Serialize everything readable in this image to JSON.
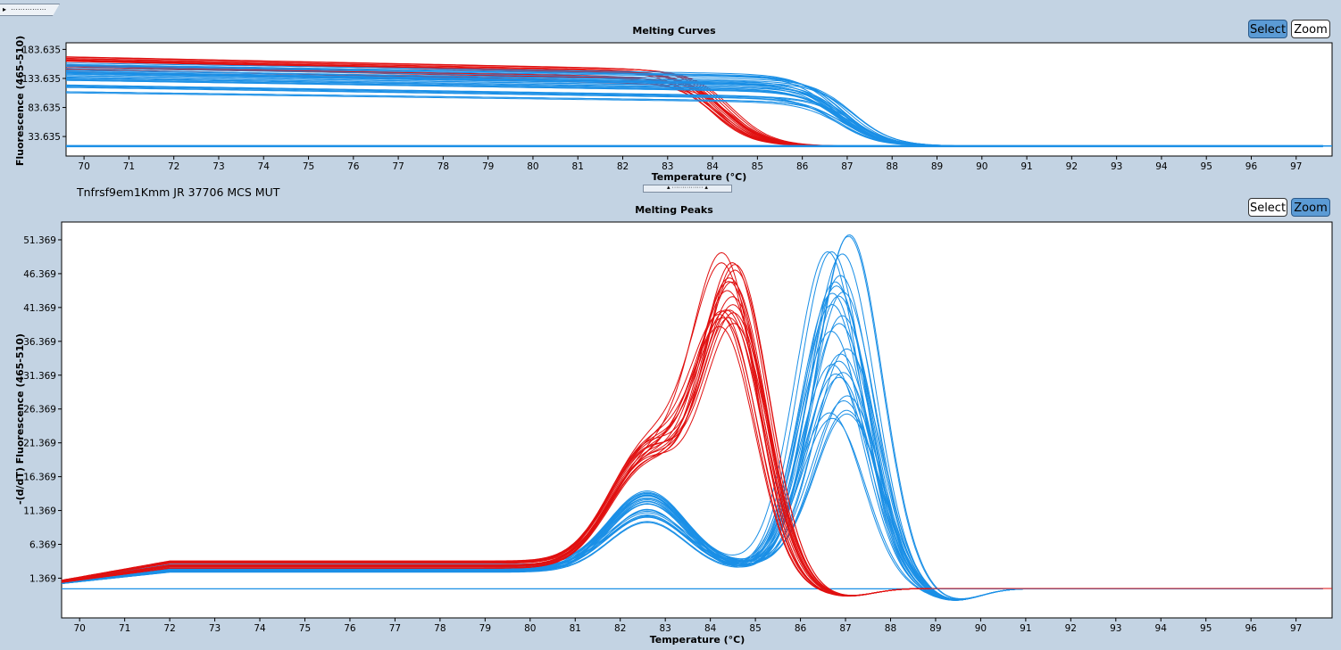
{
  "window": {
    "top_tab": {
      "arrow": "▸",
      "dots": "···············"
    },
    "sample_label": "Tnfrsf9em1Kmm JR 37706 MCS MUT",
    "splitter": {
      "text": "▴ ··············· ▴"
    }
  },
  "curves_panel": {
    "title": "Melting Curves",
    "select_label": "Select",
    "zoom_label": "Zoom",
    "active_mode": "Select"
  },
  "peaks_panel": {
    "title": "Melting Peaks",
    "select_label": "Select",
    "zoom_label": "Zoom",
    "active_mode": "Zoom"
  },
  "colors": {
    "red": "#e01010",
    "blue": "#1a8fe6",
    "flat_line": "#1a8fe6",
    "background": "#c3d3e3"
  },
  "chart_data": [
    {
      "type": "line",
      "title": "Melting Curves",
      "xlabel": "Temperature (°C)",
      "ylabel": "Fluorescence (465-510)",
      "xlim": [
        69.6,
        97.8
      ],
      "ylim": [
        0,
        195
      ],
      "x_ticks": [
        "70",
        "71",
        "72",
        "73",
        "74",
        "75",
        "76",
        "77",
        "78",
        "79",
        "80",
        "81",
        "82",
        "83",
        "84",
        "85",
        "86",
        "87",
        "88",
        "89",
        "90",
        "91",
        "92",
        "93",
        "94",
        "95",
        "96",
        "97"
      ],
      "y_ticks": [
        "183.635",
        "133.635",
        "83.635",
        "33.635"
      ],
      "y_tick_values": [
        183.635,
        133.635,
        83.635,
        33.635
      ],
      "grid": false,
      "series": [
        {
          "color": "red",
          "group_size": 20,
          "model": "sigmoid",
          "start_range": [
            145,
            172
          ],
          "slope": -1.6,
          "tm_range": [
            83.9,
            84.5
          ],
          "baseline": 17
        },
        {
          "color": "blue",
          "group_size": 28,
          "model": "sigmoid",
          "start_range": [
            115,
            160
          ],
          "slope": -1.2,
          "tm_range": [
            86.7,
            87.2
          ],
          "baseline": 17
        },
        {
          "color": "blue",
          "group_size": 3,
          "model": "sigmoid",
          "start_range": [
            97,
            112
          ],
          "slope": -1.0,
          "tm_range": [
            86.8,
            87.0
          ],
          "baseline": 17
        },
        {
          "color": "flat",
          "group_size": 1,
          "model": "constant",
          "value": 17
        }
      ]
    },
    {
      "type": "line",
      "title": "Melting Peaks",
      "xlabel": "Temperature (°C)",
      "ylabel": "-(d/dT) Fluorescence (465-510)",
      "xlim": [
        69.6,
        97.8
      ],
      "ylim": [
        -4.5,
        54
      ],
      "x_ticks": [
        "70",
        "71",
        "72",
        "73",
        "74",
        "75",
        "76",
        "77",
        "78",
        "79",
        "80",
        "81",
        "82",
        "83",
        "84",
        "85",
        "86",
        "87",
        "88",
        "89",
        "90",
        "91",
        "92",
        "93",
        "94",
        "95",
        "96",
        "97"
      ],
      "y_ticks": [
        "51.369",
        "46.369",
        "41.369",
        "36.369",
        "31.369",
        "26.369",
        "21.369",
        "16.369",
        "11.369",
        "6.369",
        "1.369"
      ],
      "y_tick_values": [
        51.369,
        46.369,
        41.369,
        36.369,
        31.369,
        26.369,
        21.369,
        16.369,
        11.369,
        6.369,
        1.369
      ],
      "grid": false,
      "series": [
        {
          "color": "red",
          "group_size": 20,
          "peak_temp_range": [
            84.3,
            84.6
          ],
          "peak_height_range": [
            34,
            45
          ],
          "shoulder_temp": 82.6,
          "shoulder_height_range": [
            14,
            17
          ],
          "baseline": 3.5,
          "dip_temp": 87.0,
          "dip_depth": -1.2
        },
        {
          "color": "blue",
          "group_size": 28,
          "peak_temp_range": [
            86.6,
            87.1
          ],
          "peak_height_range": [
            23,
            50
          ],
          "shoulder_temp": 82.6,
          "shoulder_height_range": [
            7,
            11.5
          ],
          "baseline": 3.0,
          "dip_temp": 89.4,
          "dip_depth": -1.8
        },
        {
          "color": "flat",
          "group_size": 1,
          "value": -0.2
        }
      ]
    }
  ]
}
